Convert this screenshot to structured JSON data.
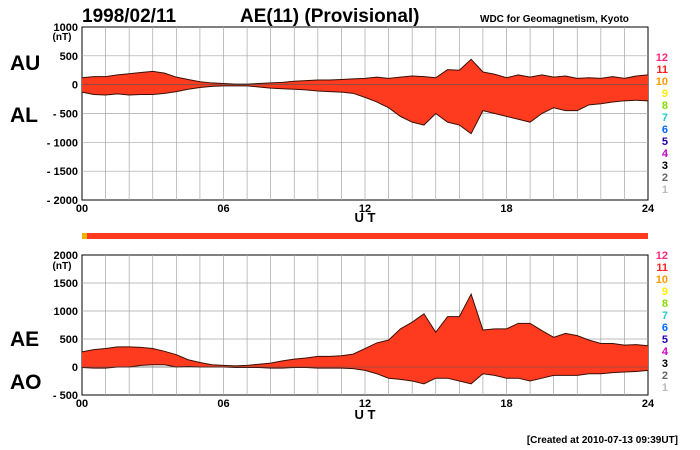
{
  "header": {
    "date": "1998/02/11",
    "title": "AE(11) (Provisional)",
    "source": "WDC for Geomagnetism, Kyoto"
  },
  "footer": {
    "created": "[Created at 2010-07-13 09:39UT]"
  },
  "colors": {
    "envelope": "#ff3b1f",
    "envelope_edge": "#3a0f05",
    "status_bar": "#ff3b1f",
    "status_bar_start": "#f0b400",
    "grid": "#a6a6a6"
  },
  "station_legend": [
    {
      "label": "12",
      "color": "#ff2a7a"
    },
    {
      "label": "11",
      "color": "#ff2020"
    },
    {
      "label": "10",
      "color": "#ff9900"
    },
    {
      "label": "9",
      "color": "#ffee00"
    },
    {
      "label": "8",
      "color": "#88dd00"
    },
    {
      "label": "7",
      "color": "#22cccc"
    },
    {
      "label": "6",
      "color": "#0066ff"
    },
    {
      "label": "5",
      "color": "#2200aa"
    },
    {
      "label": "4",
      "color": "#cc00cc"
    },
    {
      "label": "3",
      "color": "#000000"
    },
    {
      "label": "2",
      "color": "#666666"
    },
    {
      "label": "1",
      "color": "#bbbbbb"
    }
  ],
  "chart_data": [
    {
      "type": "area",
      "panel": "AU/AL",
      "upper_series_label": "AU",
      "lower_series_label": "AL",
      "xlabel": "U T",
      "ylabel": "(nT)",
      "xlim": [
        0,
        24
      ],
      "ylim": [
        -2000,
        1000
      ],
      "x_ticks": [
        0,
        6,
        12,
        18,
        24
      ],
      "x_tick_labels": [
        "00",
        "06",
        "12",
        "18",
        "24"
      ],
      "y_ticks": [
        1000,
        500,
        0,
        -500,
        -1000,
        -1500,
        -2000
      ],
      "y_tick_labels": [
        "1000",
        "500",
        "0",
        "- 500",
        "- 1000",
        "- 1500",
        "- 2000"
      ],
      "grid": true,
      "x": [
        0,
        0.5,
        1,
        1.5,
        2,
        2.5,
        3,
        3.5,
        4,
        4.5,
        5,
        5.5,
        6,
        6.5,
        7,
        7.5,
        8,
        8.5,
        9,
        9.5,
        10,
        10.5,
        11,
        11.5,
        12,
        12.5,
        13,
        13.5,
        14,
        14.5,
        15,
        15.5,
        16,
        16.5,
        17,
        17.5,
        18,
        18.5,
        19,
        19.5,
        20,
        20.5,
        21,
        21.5,
        22,
        22.5,
        23,
        23.5,
        24
      ],
      "series": [
        {
          "name": "AU",
          "values": [
            120,
            140,
            140,
            170,
            190,
            210,
            230,
            200,
            130,
            90,
            50,
            30,
            20,
            10,
            10,
            20,
            30,
            40,
            60,
            70,
            80,
            80,
            90,
            100,
            110,
            130,
            110,
            130,
            150,
            140,
            120,
            260,
            250,
            440,
            220,
            180,
            120,
            170,
            130,
            170,
            130,
            150,
            110,
            120,
            110,
            140,
            110,
            150,
            170
          ]
        },
        {
          "name": "AL",
          "values": [
            -130,
            -170,
            -180,
            -160,
            -180,
            -170,
            -170,
            -150,
            -120,
            -80,
            -50,
            -30,
            -20,
            -20,
            -20,
            -40,
            -60,
            -70,
            -80,
            -90,
            -110,
            -120,
            -130,
            -150,
            -220,
            -300,
            -400,
            -550,
            -650,
            -700,
            -500,
            -650,
            -700,
            -850,
            -450,
            -500,
            -550,
            -600,
            -650,
            -500,
            -400,
            -450,
            -450,
            -350,
            -330,
            -300,
            -280,
            -270,
            -280
          ]
        }
      ]
    },
    {
      "type": "area",
      "panel": "AE/AO",
      "upper_series_label": "AE",
      "lower_series_label": "AO",
      "xlabel": "U T",
      "ylabel": "(nT)",
      "xlim": [
        0,
        24
      ],
      "ylim": [
        -500,
        2000
      ],
      "x_ticks": [
        0,
        6,
        12,
        18,
        24
      ],
      "x_tick_labels": [
        "00",
        "06",
        "12",
        "18",
        "24"
      ],
      "y_ticks": [
        2000,
        1500,
        1000,
        500,
        0,
        -500
      ],
      "y_tick_labels": [
        "2000",
        "1500",
        "1000",
        "500",
        "0",
        "- 500"
      ],
      "grid": true,
      "x": [
        0,
        0.5,
        1,
        1.5,
        2,
        2.5,
        3,
        3.5,
        4,
        4.5,
        5,
        5.5,
        6,
        6.5,
        7,
        7.5,
        8,
        8.5,
        9,
        9.5,
        10,
        10.5,
        11,
        11.5,
        12,
        12.5,
        13,
        13.5,
        14,
        14.5,
        15,
        15.5,
        16,
        16.5,
        17,
        17.5,
        18,
        18.5,
        19,
        19.5,
        20,
        20.5,
        21,
        21.5,
        22,
        22.5,
        23,
        23.5,
        24
      ],
      "series": [
        {
          "name": "AE",
          "values": [
            270,
            310,
            330,
            360,
            360,
            350,
            330,
            280,
            220,
            130,
            80,
            40,
            30,
            20,
            30,
            50,
            70,
            110,
            140,
            160,
            190,
            190,
            200,
            230,
            330,
            430,
            480,
            680,
            800,
            950,
            620,
            900,
            900,
            1300,
            660,
            680,
            680,
            780,
            780,
            650,
            530,
            600,
            560,
            480,
            420,
            420,
            390,
            400,
            380
          ]
        },
        {
          "name": "AO",
          "values": [
            -10,
            -20,
            -20,
            0,
            0,
            30,
            40,
            40,
            0,
            10,
            0,
            0,
            0,
            -10,
            -10,
            -10,
            -20,
            -20,
            -10,
            -10,
            -20,
            -20,
            -20,
            -30,
            -60,
            -120,
            -200,
            -220,
            -250,
            -300,
            -200,
            -200,
            -250,
            -300,
            -120,
            -150,
            -200,
            -200,
            -250,
            -200,
            -150,
            -150,
            -150,
            -120,
            -120,
            -100,
            -90,
            -80,
            -60
          ]
        }
      ],
      "status_bar": "full day coverage"
    }
  ]
}
